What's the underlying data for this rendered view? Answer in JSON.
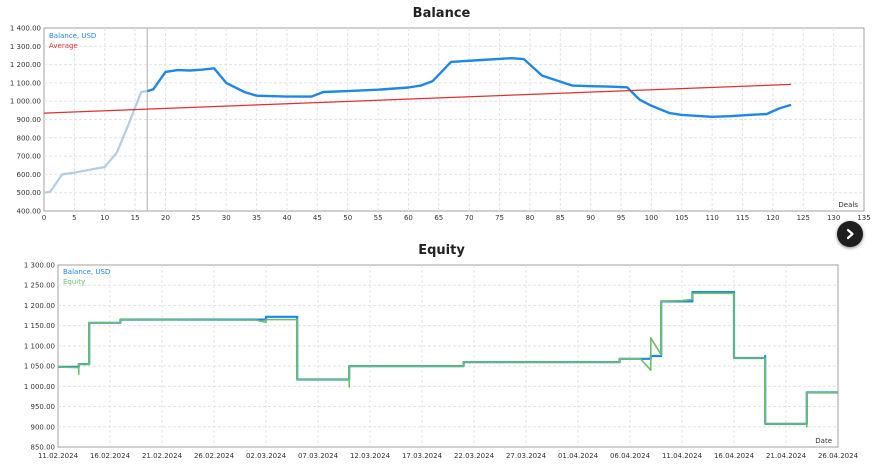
{
  "charts": [
    {
      "title": "Balance"
    },
    {
      "title": "Equity"
    }
  ],
  "colors": {
    "balance_light": "#b3cde3",
    "balance": "#1f87e5",
    "average": "#e03030",
    "equity": "#6dbf6d",
    "cursor_line": "#bbbbbb",
    "grid": "#e3e3e3"
  },
  "icons": {
    "next_button": "chevron-right-icon"
  },
  "chart_data": [
    {
      "type": "line",
      "title": "Balance",
      "xlabel": "Deals",
      "ylabel": "",
      "xlim": [
        0,
        135
      ],
      "ylim": [
        400,
        1400
      ],
      "grid": true,
      "legend_placement": "top-left",
      "x_ticks": [
        0,
        5,
        10,
        15,
        20,
        25,
        30,
        35,
        40,
        45,
        50,
        55,
        60,
        65,
        70,
        75,
        80,
        85,
        90,
        95,
        100,
        105,
        110,
        115,
        120,
        125,
        130,
        135
      ],
      "y_ticks": [
        400,
        500,
        600,
        700,
        800,
        900,
        1000,
        1100,
        1200,
        1300,
        1400
      ],
      "y_tick_labels": [
        "400.00",
        "500.00",
        "600.00",
        "700.00",
        "800.00",
        "900.00",
        "1 000.00",
        "1 100.00",
        "1 200.00",
        "1 300.00",
        "1 400.00"
      ],
      "cursor_x": 17,
      "series": [
        {
          "name": "Balance, USD",
          "points": [
            [
              0,
              500
            ],
            [
              1,
              505
            ],
            [
              3,
              600
            ],
            [
              5,
              610
            ],
            [
              7,
              622
            ],
            [
              9,
              635
            ],
            [
              10,
              640
            ],
            [
              12,
              720
            ],
            [
              14,
              880
            ],
            [
              16,
              1050
            ],
            [
              17,
              1055
            ]
          ]
        },
        {
          "name": "Balance, USD",
          "points": [
            [
              17,
              1055
            ],
            [
              18,
              1065
            ],
            [
              20,
              1160
            ],
            [
              22,
              1170
            ],
            [
              24,
              1168
            ],
            [
              26,
              1172
            ],
            [
              28,
              1180
            ],
            [
              30,
              1100
            ],
            [
              33,
              1050
            ],
            [
              35,
              1030
            ],
            [
              40,
              1025
            ],
            [
              44,
              1025
            ],
            [
              46,
              1050
            ],
            [
              50,
              1055
            ],
            [
              55,
              1063
            ],
            [
              60,
              1075
            ],
            [
              62,
              1085
            ],
            [
              64,
              1110
            ],
            [
              67,
              1215
            ],
            [
              72,
              1225
            ],
            [
              77,
              1235
            ],
            [
              79,
              1230
            ],
            [
              82,
              1140
            ],
            [
              87,
              1085
            ],
            [
              90,
              1082
            ],
            [
              93,
              1080
            ],
            [
              96,
              1076
            ],
            [
              98,
              1010
            ],
            [
              100,
              975
            ],
            [
              103,
              935
            ],
            [
              105,
              925
            ],
            [
              110,
              915
            ],
            [
              113,
              918
            ],
            [
              116,
              925
            ],
            [
              119,
              930
            ],
            [
              121,
              960
            ],
            [
              123,
              980
            ]
          ]
        },
        {
          "name": "Average",
          "points": [
            [
              0,
              935
            ],
            [
              123,
              1092
            ]
          ]
        }
      ]
    },
    {
      "type": "line",
      "title": "Equity",
      "xlabel": "Date",
      "ylabel": "",
      "xlim": [
        "2024-02-11",
        "2024-04-26"
      ],
      "ylim": [
        850,
        1300
      ],
      "grid": true,
      "legend_placement": "top-left",
      "x_ticks": [
        "11.02.2024",
        "16.02.2024",
        "21.02.2024",
        "26.02.2024",
        "02.03.2024",
        "07.03.2024",
        "12.03.2024",
        "17.03.2024",
        "22.03.2024",
        "27.03.2024",
        "01.04.2024",
        "06.04.2024",
        "11.04.2024",
        "16.04.2024",
        "21.04.2024",
        "26.04.2024"
      ],
      "y_ticks": [
        850,
        900,
        950,
        1000,
        1050,
        1100,
        1150,
        1200,
        1250,
        1300
      ],
      "y_tick_labels": [
        "850.00",
        "900.00",
        "950.00",
        "1 000.00",
        "1 050.00",
        "1 100.00",
        "1 150.00",
        "1 200.00",
        "1 250.00",
        "1 300.00"
      ],
      "series": [
        {
          "name": "Balance, USD",
          "points": [
            [
              "2024-02-11",
              1048
            ],
            [
              "2024-02-13",
              1048
            ],
            [
              "2024-02-13",
              1055
            ],
            [
              "2024-02-14",
              1055
            ],
            [
              "2024-02-14",
              1157
            ],
            [
              "2024-02-17",
              1157
            ],
            [
              "2024-02-17",
              1165
            ],
            [
              "2024-03-02",
              1165
            ],
            [
              "2024-03-02",
              1172
            ],
            [
              "2024-03-05",
              1172
            ],
            [
              "2024-03-05",
              1017
            ],
            [
              "2024-03-10",
              1017
            ],
            [
              "2024-03-10",
              1050
            ],
            [
              "2024-03-21",
              1050
            ],
            [
              "2024-03-21",
              1060
            ],
            [
              "2024-04-05",
              1060
            ],
            [
              "2024-04-05",
              1068
            ],
            [
              "2024-04-08",
              1068
            ],
            [
              "2024-04-08",
              1075
            ],
            [
              "2024-04-09",
              1075
            ],
            [
              "2024-04-09",
              1210
            ],
            [
              "2024-04-12",
              1210
            ],
            [
              "2024-04-12",
              1233
            ],
            [
              "2024-04-16",
              1233
            ],
            [
              "2024-04-16",
              1070
            ],
            [
              "2024-04-19",
              1070
            ],
            [
              "2024-04-19",
              1075
            ],
            [
              "2024-04-19",
              907
            ],
            [
              "2024-04-23",
              907
            ],
            [
              "2024-04-23",
              922
            ],
            [
              "2024-04-23",
              985
            ],
            [
              "2024-04-26",
              985
            ]
          ]
        },
        {
          "name": "Equity",
          "points": [
            [
              "2024-02-11",
              1048
            ],
            [
              "2024-02-13",
              1046
            ],
            [
              "2024-02-13",
              1030
            ],
            [
              "2024-02-13",
              1055
            ],
            [
              "2024-02-14",
              1055
            ],
            [
              "2024-02-14",
              1157
            ],
            [
              "2024-02-17",
              1157
            ],
            [
              "2024-02-17",
              1165
            ],
            [
              "2024-03-01",
              1164
            ],
            [
              "2024-03-02",
              1158
            ],
            [
              "2024-03-02",
              1165
            ],
            [
              "2024-03-05",
              1165
            ],
            [
              "2024-03-05",
              1017
            ],
            [
              "2024-03-10",
              1017
            ],
            [
              "2024-03-10",
              998
            ],
            [
              "2024-03-10",
              1050
            ],
            [
              "2024-03-21",
              1050
            ],
            [
              "2024-03-21",
              1060
            ],
            [
              "2024-04-05",
              1060
            ],
            [
              "2024-04-05",
              1068
            ],
            [
              "2024-04-07",
              1068
            ],
            [
              "2024-04-08",
              1040
            ],
            [
              "2024-04-08",
              1120
            ],
            [
              "2024-04-09",
              1078
            ],
            [
              "2024-04-09",
              1210
            ],
            [
              "2024-04-11",
              1212
            ],
            [
              "2024-04-12",
              1215
            ],
            [
              "2024-04-12",
              1230
            ],
            [
              "2024-04-16",
              1230
            ],
            [
              "2024-04-16",
              1195
            ],
            [
              "2024-04-16",
              1070
            ],
            [
              "2024-04-19",
              1070
            ],
            [
              "2024-04-19",
              950
            ],
            [
              "2024-04-19",
              907
            ],
            [
              "2024-04-23",
              907
            ],
            [
              "2024-04-23",
              900
            ],
            [
              "2024-04-23",
              925
            ],
            [
              "2024-04-23",
              985
            ],
            [
              "2024-04-26",
              985
            ]
          ]
        }
      ]
    }
  ]
}
